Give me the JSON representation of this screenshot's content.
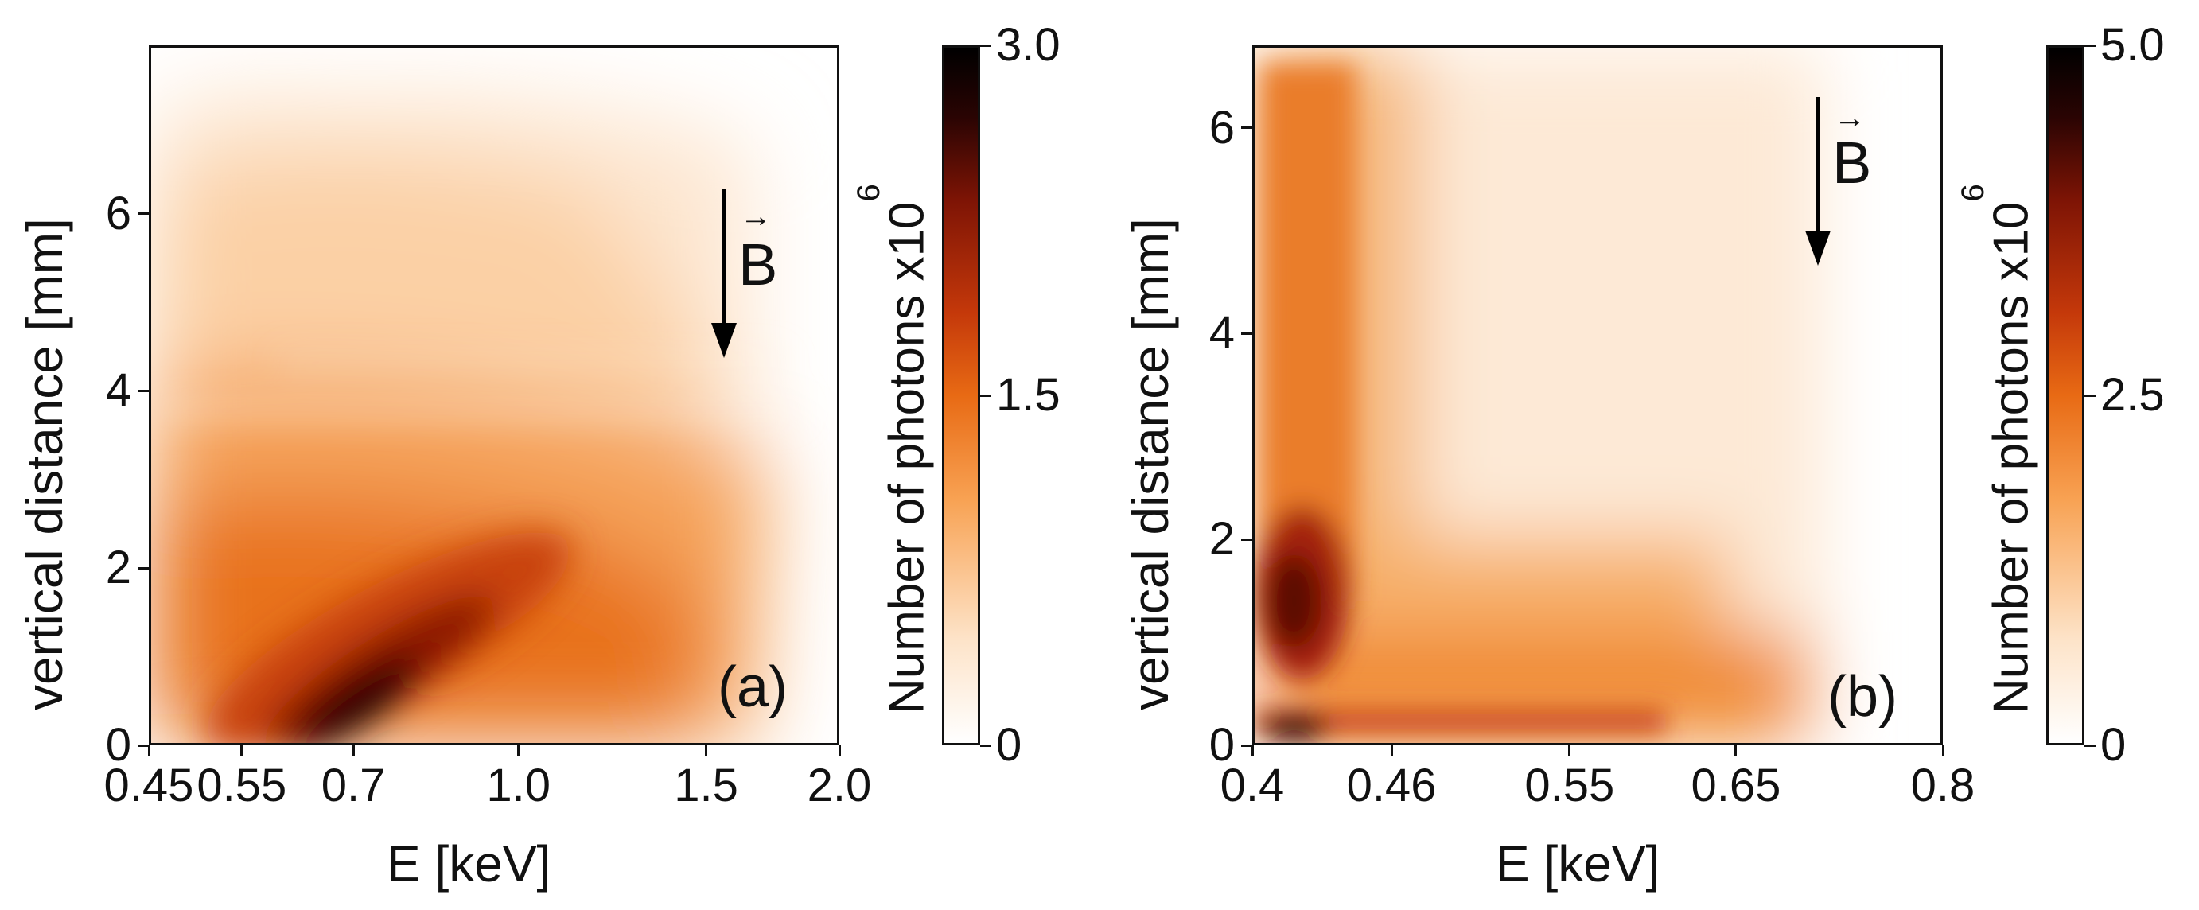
{
  "chart_data": [
    {
      "type": "heatmap",
      "panel_label": "(a)",
      "xlabel": "E [keV]",
      "ylabel": "vertical distance [mm]",
      "x_scale": "log",
      "xlim": [
        0.45,
        2.0
      ],
      "ylim": [
        0,
        7.9
      ],
      "x_ticks": [
        0.45,
        0.55,
        0.7,
        1.0,
        1.5,
        2.0
      ],
      "x_tick_labels": [
        "0.45",
        "0.55",
        "0.7",
        "1.0",
        "1.5",
        "2.0"
      ],
      "y_ticks": [
        0,
        2,
        4,
        6
      ],
      "y_tick_labels": [
        "0",
        "2",
        "4",
        "6"
      ],
      "colorbar": {
        "label": "Number of photons x10",
        "exponent": "6",
        "range": [
          0,
          3.0
        ],
        "ticks": [
          0,
          1.5,
          3.0
        ],
        "tick_labels": [
          "0",
          "1.5",
          "3.0"
        ],
        "colormap": [
          "#ffffff",
          "#fde3c8",
          "#f8a253",
          "#e86a14",
          "#c4380a",
          "#7e1405",
          "#2a0403",
          "#000000"
        ]
      },
      "annotation": {
        "text": "B",
        "vector_mark": "→",
        "arrow_direction": "down"
      },
      "intensity_features": [
        {
          "description": "peak",
          "x": 0.62,
          "y": 0.4,
          "value": 3.0
        },
        {
          "description": "diagonal ridge",
          "x": 0.75,
          "y": 1.5,
          "value": 2.0
        },
        {
          "description": "broad band",
          "x": 0.55,
          "y": 2.5,
          "value": 1.4
        },
        {
          "description": "upper region",
          "x": 0.5,
          "y": 5.5,
          "value": 0.7
        }
      ]
    },
    {
      "type": "heatmap",
      "panel_label": "(b)",
      "xlabel": "E [keV]",
      "ylabel": "vertical distance [mm]",
      "x_scale": "log",
      "xlim": [
        0.4,
        0.8
      ],
      "ylim": [
        0,
        6.8
      ],
      "x_ticks": [
        0.4,
        0.46,
        0.55,
        0.65,
        0.8
      ],
      "x_tick_labels": [
        "0.4",
        "0.46",
        "0.55",
        "0.65",
        "0.8"
      ],
      "y_ticks": [
        0,
        2,
        4,
        6
      ],
      "y_tick_labels": [
        "0",
        "2",
        "4",
        "6"
      ],
      "colorbar": {
        "label": "Number of photons x10",
        "exponent": "6",
        "range": [
          0,
          5.0
        ],
        "ticks": [
          0,
          2.5,
          5.0
        ],
        "tick_labels": [
          "0",
          "2.5",
          "5.0"
        ],
        "colormap": [
          "#ffffff",
          "#fde3c8",
          "#f8a253",
          "#e86a14",
          "#c4380a",
          "#7e1405",
          "#2a0403",
          "#000000"
        ]
      },
      "annotation": {
        "text": "B",
        "vector_mark": "→",
        "arrow_direction": "down"
      },
      "intensity_features": [
        {
          "description": "peak",
          "x": 0.42,
          "y": 0.1,
          "value": 5.0
        },
        {
          "description": "low-energy column",
          "x": 0.42,
          "y": 1.0,
          "value": 4.0
        },
        {
          "description": "bottom band",
          "x": 0.5,
          "y": 0.15,
          "value": 2.5
        },
        {
          "description": "upper column",
          "x": 0.42,
          "y": 5.0,
          "value": 2.0
        }
      ]
    }
  ]
}
